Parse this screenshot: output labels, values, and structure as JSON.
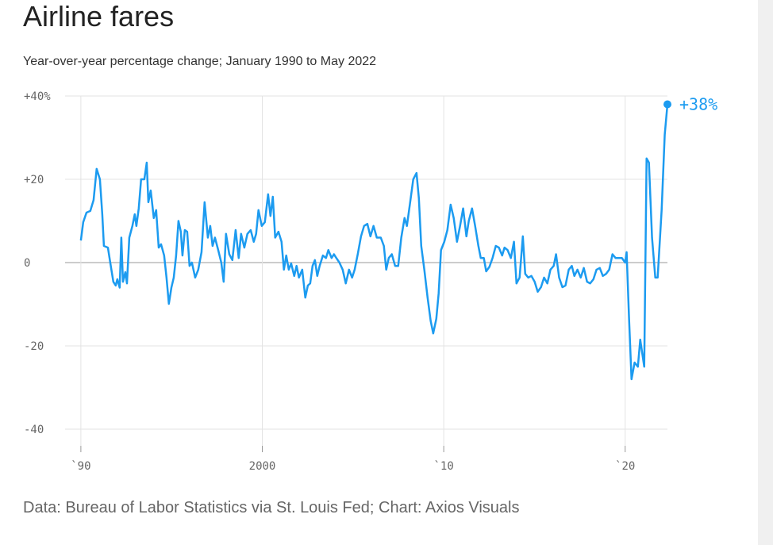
{
  "chart_data": {
    "type": "line",
    "title": "Airline fares",
    "subtitle": "Year-over-year percentage change; January 1990 to May 2022",
    "source": "Data: Bureau of Labor Statistics via St. Louis Fed; Chart: Axios Visuals",
    "annotation": "+38%",
    "xlim": [
      1989.13,
      2022.33
    ],
    "xticks": [
      {
        "value": 1990,
        "label": "`90"
      },
      2000,
      {
        "value": 2010,
        "label": "`10"
      },
      {
        "value": 2020,
        "label": "`20"
      }
    ],
    "ylim": [
      -44,
      40
    ],
    "yticks": [
      {
        "value": 40,
        "label": "+40%"
      },
      {
        "value": 20,
        "label": "+20"
      },
      0,
      -20,
      -40
    ],
    "grid": true,
    "x": [
      1990.0,
      1990.13,
      1990.31,
      1990.52,
      1990.7,
      1990.87,
      1991.05,
      1991.18,
      1991.27,
      1991.49,
      1991.62,
      1991.79,
      1991.92,
      1992.01,
      1992.14,
      1992.23,
      1992.32,
      1992.45,
      1992.54,
      1992.67,
      1992.84,
      1992.97,
      1993.06,
      1993.19,
      1993.32,
      1993.5,
      1993.63,
      1993.72,
      1993.85,
      1994.02,
      1994.15,
      1994.29,
      1994.42,
      1994.59,
      1994.72,
      1994.85,
      1994.99,
      1995.12,
      1995.25,
      1995.38,
      1995.51,
      1995.6,
      1995.73,
      1995.86,
      1995.99,
      1996.12,
      1996.3,
      1996.47,
      1996.65,
      1996.82,
      1997.0,
      1997.13,
      1997.26,
      1997.39,
      1997.57,
      1997.74,
      1997.87,
      1998.0,
      1998.18,
      1998.35,
      1998.53,
      1998.7,
      1998.83,
      1999.01,
      1999.18,
      1999.36,
      1999.53,
      1999.66,
      1999.79,
      1999.97,
      2000.14,
      2000.32,
      2000.45,
      2000.58,
      2000.71,
      2000.89,
      2001.06,
      2001.19,
      2001.32,
      2001.46,
      2001.59,
      2001.76,
      2001.89,
      2002.02,
      2002.2,
      2002.37,
      2002.51,
      2002.64,
      2002.77,
      2002.9,
      2003.03,
      2003.16,
      2003.34,
      2003.51,
      2003.64,
      2003.82,
      2003.95,
      2004.08,
      2004.25,
      2004.43,
      2004.6,
      2004.78,
      2004.95,
      2005.09,
      2005.26,
      2005.44,
      2005.61,
      2005.79,
      2005.96,
      2006.13,
      2006.31,
      2006.53,
      2006.7,
      2006.83,
      2006.97,
      2007.14,
      2007.32,
      2007.49,
      2007.66,
      2007.84,
      2007.97,
      2008.15,
      2008.32,
      2008.5,
      2008.63,
      2008.76,
      2008.93,
      2009.11,
      2009.28,
      2009.42,
      2009.59,
      2009.72,
      2009.85,
      2010.03,
      2010.2,
      2010.38,
      2010.55,
      2010.73,
      2010.9,
      2011.07,
      2011.25,
      2011.38,
      2011.56,
      2011.73,
      2011.91,
      2012.04,
      2012.21,
      2012.34,
      2012.52,
      2012.69,
      2012.87,
      2013.04,
      2013.22,
      2013.35,
      2013.52,
      2013.7,
      2013.87,
      2014.01,
      2014.18,
      2014.36,
      2014.49,
      2014.66,
      2014.83,
      2015.01,
      2015.18,
      2015.36,
      2015.53,
      2015.71,
      2015.88,
      2016.06,
      2016.19,
      2016.36,
      2016.54,
      2016.71,
      2016.89,
      2017.06,
      2017.2,
      2017.37,
      2017.55,
      2017.72,
      2017.9,
      2018.07,
      2018.25,
      2018.42,
      2018.6,
      2018.77,
      2018.95,
      2019.12,
      2019.3,
      2019.47,
      2019.65,
      2019.82,
      2020.0,
      2020.08,
      2020.21,
      2020.35,
      2020.52,
      2020.7,
      2020.83,
      2021.05,
      2021.18,
      2021.31,
      2021.48,
      2021.66,
      2021.79,
      2022.01,
      2022.18,
      2022.33
    ],
    "series": [
      {
        "name": "Airline fares",
        "color": "#1c9bf0",
        "values": [
          5.3,
          9.7,
          12,
          12.4,
          15,
          22.5,
          20,
          11.6,
          4,
          3.6,
          0,
          -4.6,
          -5.5,
          -4,
          -6,
          6,
          -4.6,
          -2.3,
          -5,
          6,
          8.8,
          11.6,
          8.8,
          13,
          20,
          20,
          24,
          14.5,
          17.3,
          10.7,
          12.6,
          3.6,
          4.4,
          1.7,
          -3.6,
          -9.9,
          -6,
          -3.6,
          1.7,
          10,
          7.4,
          1.7,
          7.8,
          7.4,
          -0.8,
          0,
          -3.6,
          -1.7,
          2.5,
          14.5,
          6,
          8.8,
          4,
          6,
          3,
          0,
          -4.6,
          6.9,
          2,
          0.6,
          7.8,
          1.1,
          6.9,
          3.6,
          6.9,
          7.8,
          5,
          6.9,
          12.6,
          8.8,
          9.7,
          16.4,
          11.2,
          15.8,
          6,
          7.4,
          5,
          -1.7,
          1.7,
          -1.7,
          -0.2,
          -3.2,
          -0.8,
          -3.6,
          -1.7,
          -8.4,
          -5.5,
          -5,
          -0.8,
          0.6,
          -3.2,
          -0.8,
          1.7,
          1.1,
          3,
          1.1,
          2,
          1.1,
          0,
          -1.7,
          -5,
          -1.7,
          -3.6,
          -1.7,
          2,
          6.3,
          8.8,
          9.3,
          6.3,
          8.8,
          6,
          6,
          4,
          -1.7,
          1.1,
          2,
          -0.8,
          -0.8,
          6,
          10.7,
          8.8,
          14.5,
          20,
          21.5,
          15.4,
          4,
          -1.7,
          -8.4,
          -14,
          -17,
          -13.5,
          -7.4,
          3,
          5,
          7.8,
          13.9,
          10.7,
          5,
          8.8,
          13,
          6.3,
          10,
          13,
          8.8,
          4,
          1.1,
          1.1,
          -2.1,
          -1,
          1.1,
          4,
          3.6,
          1.7,
          3.6,
          3,
          1.1,
          5,
          -5,
          -3.6,
          6.3,
          -2.7,
          -3.6,
          -3.2,
          -4.6,
          -7,
          -5.9,
          -3.6,
          -5,
          -1.7,
          -0.8,
          2,
          -3.6,
          -5.9,
          -5.5,
          -1.7,
          -0.8,
          -3.2,
          -1.7,
          -3.6,
          -1.3,
          -4.6,
          -5,
          -4,
          -1.7,
          -1.3,
          -3.2,
          -2.7,
          -1.7,
          2,
          1.1,
          1.1,
          1.1,
          0,
          2.5,
          -13,
          -28,
          -24,
          -25,
          -18.5,
          -25,
          25,
          24,
          6,
          -3.6,
          -3.6,
          12.6,
          30.7,
          38
        ]
      }
    ]
  }
}
